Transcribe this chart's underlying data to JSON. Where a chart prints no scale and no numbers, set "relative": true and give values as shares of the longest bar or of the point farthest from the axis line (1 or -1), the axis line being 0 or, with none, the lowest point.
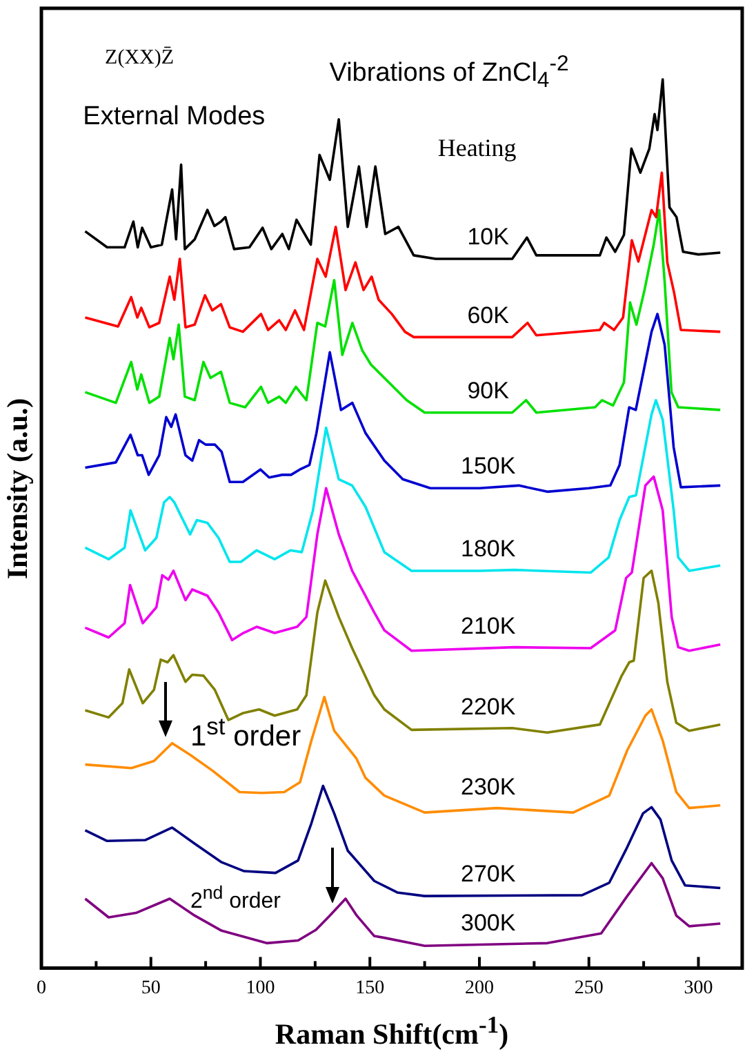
{
  "chart_data": {
    "type": "line",
    "relative": true,
    "tick_labels": "x",
    "xlabel": "Raman Shift(cm$^{-1}$)",
    "ylabel": "Intensity (a.u.)",
    "annotations": [
      "Z(XX)Z̄",
      "External Modes",
      "Vibrations of ZnCl$_{4}$$^{-2}$",
      "Heating",
      "1$^{st}$ order",
      "2$^{nd}$ order"
    ],
    "xlim": [
      0,
      320
    ],
    "xticks": [
      0,
      {
        "value": 25,
        "label": null
      },
      50,
      {
        "value": 75,
        "label": null
      },
      100,
      {
        "value": 125,
        "label": null
      },
      150,
      {
        "value": 175,
        "label": null
      },
      200,
      {
        "value": 225,
        "label": null
      },
      250,
      {
        "value": 275,
        "label": null
      },
      300
    ],
    "series": [
      {
        "name": "10K",
        "color": "#000000",
        "x": [
          20,
          30,
          38,
          42,
          44,
          46,
          50,
          55,
          59.7,
          61.5,
          63.8,
          65.5,
          70,
          75.8,
          79,
          82,
          84,
          88,
          95,
          101,
          105,
          110,
          113,
          116.5,
          123,
          127,
          131.7,
          135.8,
          139.9,
          145,
          148.5,
          152.5,
          157,
          163,
          170,
          180,
          215,
          221.7,
          226,
          255,
          258,
          262,
          266,
          269.4,
          273.5,
          277.6,
          280,
          281.3,
          283.7,
          286.8,
          290,
          293,
          300,
          310
        ],
        "values": [
          0.829,
          0.811,
          0.811,
          0.84,
          0.811,
          0.833,
          0.811,
          0.814,
          0.876,
          0.82,
          0.904,
          0.809,
          0.82,
          0.853,
          0.835,
          0.84,
          0.845,
          0.809,
          0.811,
          0.833,
          0.809,
          0.826,
          0.809,
          0.842,
          0.814,
          0.915,
          0.887,
          0.955,
          0.834,
          0.902,
          0.834,
          0.902,
          0.826,
          0.834,
          0.802,
          0.798,
          0.798,
          0.822,
          0.802,
          0.802,
          0.822,
          0.806,
          0.825,
          0.922,
          0.895,
          0.922,
          0.961,
          0.943,
          1,
          0.856,
          0.845,
          0.806,
          0.803,
          0.805
        ]
      },
      {
        "name": "60K",
        "color": "#ff0000",
        "x": [
          20,
          35,
          41,
          43.8,
          45.6,
          49.3,
          53.8,
          58.6,
          60.7,
          63.2,
          65.8,
          70,
          74.7,
          78,
          82,
          86,
          92,
          100.3,
          103.5,
          108.6,
          111.6,
          115.8,
          119.9,
          126,
          129.8,
          134.4,
          138.9,
          143.4,
          147.1,
          150.8,
          154,
          160,
          166,
          170,
          215,
          222,
          226,
          255,
          257,
          261.5,
          265.6,
          269.6,
          272.6,
          278.6,
          280.7,
          283.3,
          285.8,
          288.9,
          292,
          310
        ],
        "values": [
          0.732,
          0.722,
          0.755,
          0.732,
          0.743,
          0.721,
          0.726,
          0.778,
          0.752,
          0.798,
          0.721,
          0.724,
          0.757,
          0.74,
          0.747,
          0.721,
          0.716,
          0.736,
          0.718,
          0.729,
          0.718,
          0.74,
          0.718,
          0.798,
          0.778,
          0.834,
          0.763,
          0.794,
          0.763,
          0.778,
          0.752,
          0.736,
          0.716,
          0.71,
          0.71,
          0.726,
          0.712,
          0.718,
          0.726,
          0.718,
          0.732,
          0.819,
          0.795,
          0.853,
          0.845,
          0.895,
          0.794,
          0.76,
          0.718,
          0.716
        ]
      },
      {
        "name": "90K",
        "color": "#00e000",
        "x": [
          20,
          34,
          41,
          43.8,
          45.6,
          49.3,
          53.8,
          58.6,
          60.3,
          62.7,
          65.5,
          70,
          74,
          77.2,
          82,
          86,
          93,
          100.3,
          103.5,
          108.6,
          111.6,
          116.2,
          121,
          126,
          129.6,
          133.7,
          137.4,
          142,
          146.5,
          150.5,
          156.6,
          166.8,
          175,
          215,
          221.3,
          226,
          252.8,
          256,
          261,
          266,
          268.8,
          271.7,
          275.4,
          279.6,
          282.1,
          284.6,
          287.7,
          290.8,
          310
        ],
        "values": [
          0.648,
          0.636,
          0.682,
          0.651,
          0.668,
          0.636,
          0.643,
          0.709,
          0.685,
          0.724,
          0.643,
          0.639,
          0.682,
          0.664,
          0.671,
          0.636,
          0.631,
          0.654,
          0.636,
          0.643,
          0.636,
          0.654,
          0.639,
          0.726,
          0.722,
          0.774,
          0.69,
          0.726,
          0.695,
          0.679,
          0.664,
          0.639,
          0.625,
          0.625,
          0.639,
          0.625,
          0.631,
          0.639,
          0.633,
          0.659,
          0.749,
          0.724,
          0.763,
          0.814,
          0.853,
          0.772,
          0.648,
          0.631,
          0.628
        ]
      },
      {
        "name": "150K",
        "color": "#0000d0",
        "x": [
          20,
          34,
          40.7,
          44,
          46,
          49,
          53.8,
          57,
          59.3,
          61.3,
          65.8,
          68.9,
          72,
          75,
          79.2,
          82.3,
          86,
          92,
          100,
          104,
          110,
          114,
          118,
          122.4,
          125.6,
          131.7,
          136.8,
          142,
          148,
          156.6,
          165,
          177.6,
          200,
          218,
          231,
          250,
          259.8,
          264,
          268.4,
          271.4,
          278.6,
          281.3,
          284.6,
          288.7,
          292,
          310
        ],
        "values": [
          0.563,
          0.569,
          0.6,
          0.577,
          0.577,
          0.555,
          0.577,
          0.62,
          0.609,
          0.623,
          0.577,
          0.571,
          0.594,
          0.589,
          0.589,
          0.581,
          0.547,
          0.547,
          0.561,
          0.552,
          0.555,
          0.555,
          0.561,
          0.566,
          0.602,
          0.693,
          0.628,
          0.636,
          0.602,
          0.571,
          0.55,
          0.54,
          0.54,
          0.543,
          0.536,
          0.54,
          0.543,
          0.566,
          0.631,
          0.628,
          0.716,
          0.736,
          0.701,
          0.586,
          0.541,
          0.543
        ]
      },
      {
        "name": "180K",
        "color": "#00e5ee",
        "x": [
          20,
          30.7,
          38,
          40.7,
          47.4,
          52.5,
          56,
          58.6,
          60.7,
          67.9,
          71,
          75.8,
          80.9,
          86,
          91.1,
          98.3,
          106.5,
          113.7,
          118.9,
          124,
          130,
          135.8,
          141.9,
          148,
          156.6,
          169,
          200,
          216,
          250.8,
          259,
          264,
          268.4,
          271.5,
          278.6,
          280.6,
          283.7,
          288.7,
          290.8,
          295.8,
          310
        ],
        "values": [
          0.473,
          0.46,
          0.473,
          0.515,
          0.47,
          0.484,
          0.524,
          0.53,
          0.524,
          0.488,
          0.504,
          0.501,
          0.484,
          0.457,
          0.457,
          0.47,
          0.46,
          0.47,
          0.468,
          0.515,
          0.608,
          0.55,
          0.543,
          0.519,
          0.468,
          0.447,
          0.447,
          0.448,
          0.445,
          0.462,
          0.504,
          0.53,
          0.532,
          0.623,
          0.639,
          0.617,
          0.515,
          0.462,
          0.447,
          0.453
        ]
      },
      {
        "name": "210K",
        "color": "#ee00ee",
        "x": [
          20,
          30.7,
          38,
          40.5,
          46.3,
          52.5,
          55.2,
          58,
          60.3,
          65.8,
          68.9,
          75.8,
          80.9,
          87.1,
          92.2,
          98.3,
          106.5,
          116.8,
          121,
          126,
          130,
          135.8,
          141.9,
          152,
          156.6,
          169,
          216,
          250.8,
          262,
          267,
          269.6,
          275.8,
          279.6,
          283.7,
          287.8,
          290.8,
          295.8,
          310
        ],
        "values": [
          0.383,
          0.372,
          0.388,
          0.431,
          0.388,
          0.406,
          0.442,
          0.437,
          0.447,
          0.414,
          0.426,
          0.419,
          0.4,
          0.369,
          0.377,
          0.384,
          0.377,
          0.384,
          0.395,
          0.488,
          0.54,
          0.488,
          0.447,
          0.4,
          0.38,
          0.357,
          0.361,
          0.36,
          0.38,
          0.439,
          0.445,
          0.543,
          0.553,
          0.515,
          0.395,
          0.361,
          0.357,
          0.364
        ]
      },
      {
        "name": "220K",
        "color": "#808000",
        "x": [
          20,
          30.7,
          37,
          40.1,
          46.3,
          51.4,
          54.5,
          57.6,
          60.3,
          65.8,
          68.9,
          74,
          79.2,
          85.4,
          92.2,
          99.4,
          106.5,
          116.8,
          121,
          126,
          129.6,
          135.8,
          141.9,
          152,
          156.6,
          169,
          215,
          231,
          255,
          265,
          268.4,
          270.5,
          275,
          278.6,
          281.7,
          285.8,
          289.9,
          295.8,
          310
        ],
        "values": [
          0.29,
          0.282,
          0.298,
          0.336,
          0.298,
          0.313,
          0.347,
          0.344,
          0.352,
          0.322,
          0.33,
          0.329,
          0.313,
          0.279,
          0.287,
          0.291,
          0.284,
          0.291,
          0.307,
          0.4,
          0.436,
          0.395,
          0.36,
          0.307,
          0.291,
          0.268,
          0.27,
          0.265,
          0.274,
          0.329,
          0.344,
          0.346,
          0.439,
          0.447,
          0.411,
          0.322,
          0.276,
          0.267,
          0.274
        ]
      },
      {
        "name": "230K",
        "color": "#ff8c00",
        "x": [
          20,
          41.1,
          51.4,
          59.7,
          67.9,
          78.2,
          90.5,
          100.6,
          110.9,
          118.1,
          123.3,
          129.2,
          133.7,
          139.9,
          143.8,
          148,
          156.6,
          175,
          208,
          242.8,
          259.3,
          267.5,
          275.8,
          278.6,
          283.7,
          289.9,
          295.8,
          310
        ],
        "values": [
          0.229,
          0.225,
          0.233,
          0.253,
          0.24,
          0.222,
          0.198,
          0.197,
          0.198,
          0.209,
          0.256,
          0.305,
          0.267,
          0.248,
          0.236,
          0.214,
          0.194,
          0.175,
          0.18,
          0.175,
          0.194,
          0.245,
          0.284,
          0.291,
          0.256,
          0.198,
          0.18,
          0.183
        ]
      },
      {
        "name": "270K",
        "color": "#000080",
        "x": [
          20,
          30,
          47.4,
          59.7,
          70,
          82.3,
          92.6,
          106.9,
          117.2,
          123.3,
          128.6,
          133.7,
          139.9,
          152,
          162.5,
          175,
          246.9,
          259.3,
          267.5,
          274.7,
          278.6,
          282.7,
          287.8,
          293.9,
          310
        ],
        "values": [
          0.155,
          0.143,
          0.144,
          0.158,
          0.14,
          0.119,
          0.109,
          0.107,
          0.121,
          0.163,
          0.205,
          0.174,
          0.132,
          0.098,
          0.085,
          0.081,
          0.082,
          0.096,
          0.136,
          0.174,
          0.181,
          0.167,
          0.121,
          0.093,
          0.09
        ]
      },
      {
        "name": "300K",
        "color": "#800080",
        "x": [
          20,
          30.7,
          43.2,
          58.6,
          70,
          82.3,
          102.9,
          117.2,
          125.4,
          131.7,
          138.9,
          144,
          152,
          156.6,
          175,
          231,
          255.6,
          267.5,
          278.6,
          283.7,
          289.9,
          295.8,
          310
        ],
        "values": [
          0.078,
          0.057,
          0.062,
          0.078,
          0.059,
          0.042,
          0.028,
          0.031,
          0.043,
          0.059,
          0.078,
          0.059,
          0.036,
          0.034,
          0.025,
          0.028,
          0.039,
          0.081,
          0.118,
          0.101,
          0.059,
          0.047,
          0.05
        ]
      }
    ]
  }
}
